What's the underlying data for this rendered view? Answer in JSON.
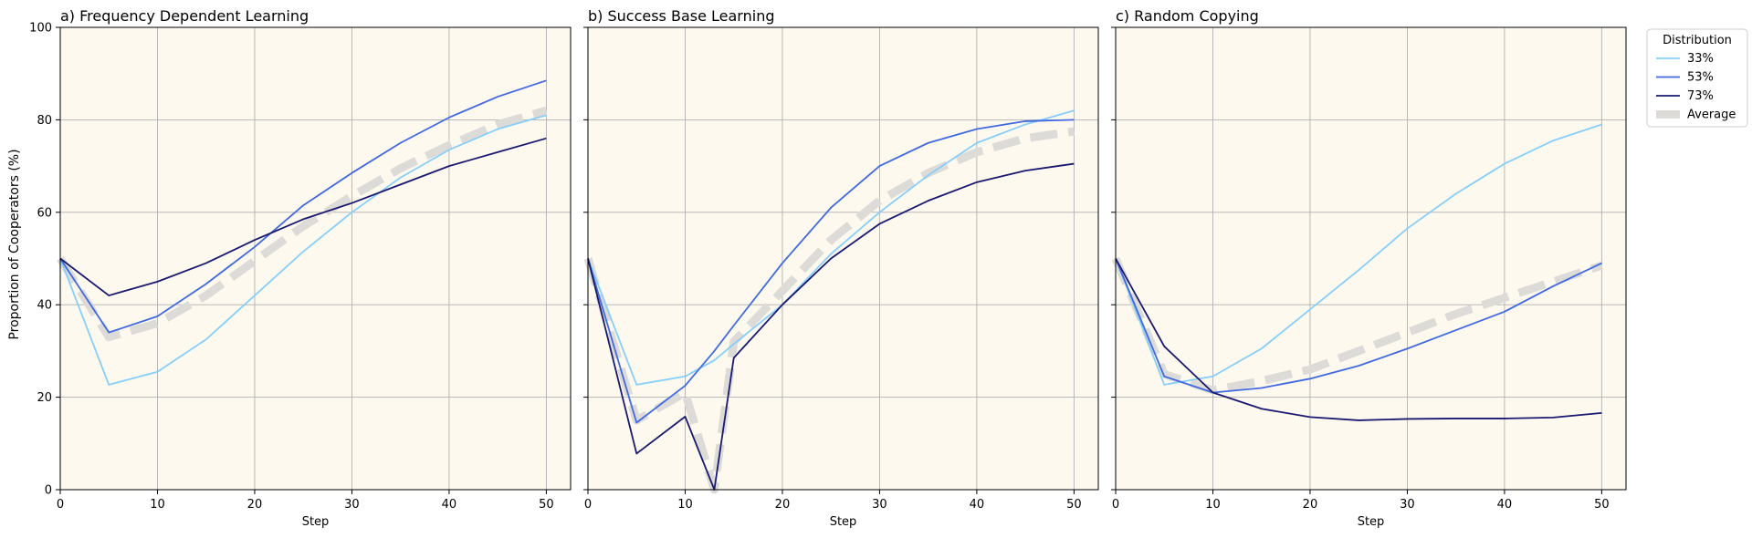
{
  "ylabel": "Proportion of Cooperators (%)",
  "legend": {
    "title": "Distribution",
    "placement": "upper-right-outside",
    "entries": [
      {
        "label": "33%",
        "color": "#87cefa",
        "style": "solid"
      },
      {
        "label": "53%",
        "color": "#4169e1",
        "style": "solid"
      },
      {
        "label": "73%",
        "color": "#191970",
        "style": "solid"
      },
      {
        "label": "Average",
        "color": "#dddbd7",
        "style": "dashed"
      }
    ]
  },
  "style": {
    "plot_background": "#fdf9ee",
    "grid_color": "#b0b0b0",
    "grid": true
  },
  "chart_data": [
    {
      "type": "line",
      "title": "a) Frequency Dependent Learning",
      "xlabel": "Step",
      "ylabel": "Proportion of Cooperators (%)",
      "xlim": [
        0,
        52.5
      ],
      "ylim": [
        0,
        100
      ],
      "xticks": [
        0,
        10,
        20,
        30,
        40,
        50
      ],
      "yticks": [
        0,
        20,
        40,
        60,
        80,
        100
      ],
      "x": [
        0,
        5,
        10,
        15,
        20,
        25,
        30,
        35,
        40,
        45,
        50
      ],
      "series": [
        {
          "name": "33%",
          "color": "#87cefa",
          "values": [
            50,
            22.7,
            25.5,
            32.5,
            42,
            51.5,
            60,
            67.5,
            73.5,
            78,
            81
          ]
        },
        {
          "name": "53%",
          "color": "#4169e1",
          "values": [
            50,
            34,
            37.5,
            44.5,
            52.5,
            61.5,
            68.5,
            75,
            80.5,
            85,
            88.5
          ]
        },
        {
          "name": "73%",
          "color": "#191970",
          "values": [
            50,
            42,
            45,
            49,
            54,
            58.5,
            62,
            66,
            70,
            73,
            76
          ]
        },
        {
          "name": "Average",
          "color": "#dddbd7",
          "dashed": true,
          "values": [
            50,
            33,
            36,
            42,
            49.5,
            57,
            63.5,
            69.5,
            74.5,
            79,
            82
          ]
        }
      ]
    },
    {
      "type": "line",
      "title": "b) Success Base Learning",
      "xlabel": "Step",
      "xlim": [
        0,
        52.5
      ],
      "ylim": [
        0,
        100
      ],
      "xticks": [
        0,
        10,
        20,
        30,
        40,
        50
      ],
      "x": [
        0,
        5,
        10,
        13,
        15,
        20,
        25,
        30,
        35,
        40,
        45,
        50
      ],
      "series": [
        {
          "name": "33%",
          "color": "#87cefa",
          "values": [
            50,
            22.7,
            24.5,
            28,
            31.5,
            40,
            51,
            60,
            68,
            75,
            79,
            82
          ]
        },
        {
          "name": "53%",
          "color": "#4169e1",
          "values": [
            50,
            14.5,
            22.5,
            30,
            35.5,
            49,
            61,
            70,
            75,
            78,
            79.7,
            80
          ]
        },
        {
          "name": "73%",
          "color": "#191970",
          "values": [
            50,
            7.8,
            15.8,
            0,
            28.5,
            40,
            50,
            57.5,
            62.5,
            66.5,
            69,
            70.5
          ]
        },
        {
          "name": "Average",
          "color": "#dddbd7",
          "dashed": true,
          "values": [
            50,
            15,
            21,
            0,
            32,
            43,
            54,
            62.5,
            68.5,
            73,
            76,
            77.5
          ]
        }
      ]
    },
    {
      "type": "line",
      "title": "c) Random Copying",
      "xlabel": "Step",
      "xlim": [
        0,
        52.5
      ],
      "ylim": [
        0,
        100
      ],
      "xticks": [
        0,
        10,
        20,
        30,
        40,
        50
      ],
      "x": [
        0,
        5,
        10,
        15,
        20,
        25,
        30,
        35,
        40,
        45,
        50
      ],
      "series": [
        {
          "name": "33%",
          "color": "#87cefa",
          "values": [
            50,
            22.7,
            24.5,
            30.5,
            39,
            47.5,
            56.5,
            64,
            70.5,
            75.5,
            79
          ]
        },
        {
          "name": "53%",
          "color": "#4169e1",
          "values": [
            50,
            24.5,
            21,
            22,
            24,
            26.8,
            30.5,
            34.5,
            38.5,
            44,
            49
          ]
        },
        {
          "name": "73%",
          "color": "#191970",
          "values": [
            50,
            31,
            21,
            17.5,
            15.7,
            15,
            15.3,
            15.4,
            15.4,
            15.6,
            16.6
          ]
        },
        {
          "name": "Average",
          "color": "#dddbd7",
          "dashed": true,
          "values": [
            50,
            25,
            21.5,
            23.5,
            26,
            30,
            34,
            38,
            41.5,
            45,
            48.5
          ]
        }
      ]
    }
  ]
}
